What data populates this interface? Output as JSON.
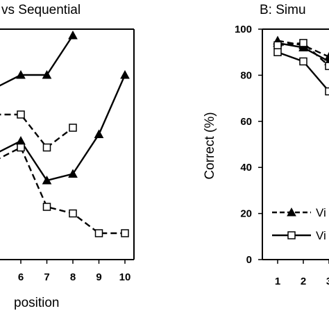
{
  "chart_data": [
    {
      "panel": "left",
      "type": "line",
      "title": "vs Sequential",
      "xlabel": "position",
      "ylabel": "",
      "x_ticks": [
        "6",
        "7",
        "8",
        "9",
        "10"
      ],
      "series": [
        {
          "marker": "filled-triangle",
          "line": "solid",
          "x": [
            5,
            6,
            7,
            8
          ],
          "y": [
            93,
            95,
            95,
            101
          ]
        },
        {
          "marker": "open-square",
          "line": "dashed",
          "x": [
            5,
            6,
            7,
            8
          ],
          "y": [
            89,
            89,
            84,
            87
          ]
        },
        {
          "marker": "filled-triangle",
          "line": "solid",
          "x": [
            5,
            6,
            7,
            8,
            9,
            10
          ],
          "y": [
            83,
            85,
            79,
            80,
            86,
            95
          ]
        },
        {
          "marker": "open-square",
          "line": "dashed",
          "x": [
            5,
            6,
            7,
            8,
            9,
            10
          ],
          "y": [
            82,
            84,
            75,
            74,
            71,
            71
          ]
        }
      ]
    },
    {
      "panel": "right",
      "type": "line",
      "title": "B: Simu",
      "xlabel": "",
      "ylabel": "Correct (%)",
      "ylim": [
        0,
        100
      ],
      "y_ticks": [
        0,
        20,
        40,
        60,
        80,
        100
      ],
      "x_ticks": [
        "1",
        "2",
        "3"
      ],
      "series": [
        {
          "name": "Vi",
          "marker": "filled-triangle",
          "line": "dashed",
          "x": [
            1,
            2,
            3
          ],
          "y": [
            95,
            93,
            88
          ]
        },
        {
          "marker": "filled-triangle",
          "line": "solid",
          "x": [
            1,
            2,
            3
          ],
          "y": [
            94,
            92,
            86
          ]
        },
        {
          "marker": "open-square",
          "line": "dashed",
          "x": [
            1,
            2,
            3
          ],
          "y": [
            93,
            94,
            84
          ]
        },
        {
          "name": "Vi",
          "marker": "open-square",
          "line": "solid",
          "x": [
            1,
            2,
            3
          ],
          "y": [
            90,
            86,
            73
          ]
        }
      ],
      "legend": {
        "placement": "bottom-right",
        "entries": [
          {
            "label": "Vi",
            "marker": "filled-triangle",
            "line": "dashed"
          },
          {
            "label": "Vi",
            "marker": "open-square",
            "line": "solid"
          }
        ]
      }
    }
  ]
}
